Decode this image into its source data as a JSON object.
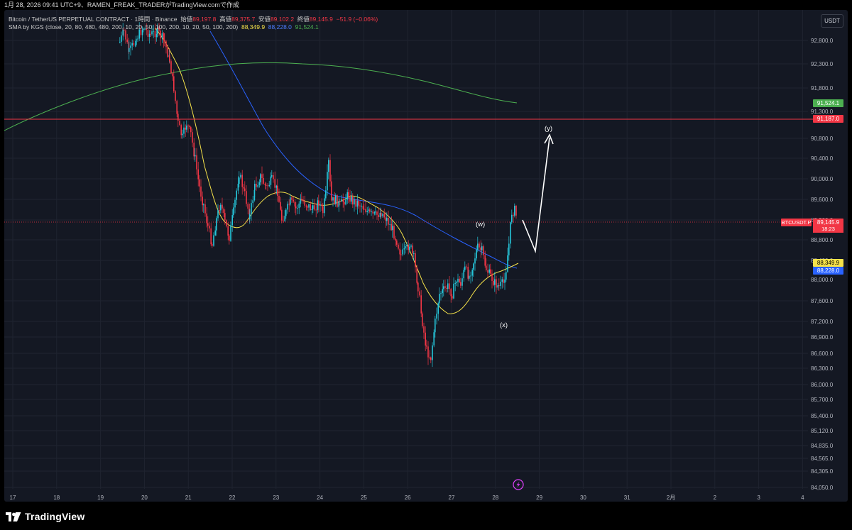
{
  "header": {
    "text": "1月 28, 2026 09:41 UTC+9、RAMEN_FREAK_TRADERがTradingView.comで作成"
  },
  "legend": {
    "symbol": "Bitcoin / TetherUS PERPETUAL CONTRACT",
    "interval": "1時間",
    "exchange": "Binance",
    "open_label": "始値",
    "open_value": "89,197.8",
    "high_label": "高値",
    "high_value": "89,375.7",
    "low_label": "安値",
    "low_value": "89,102.2",
    "close_label": "終値",
    "close_value": "89,145.9",
    "change": "−51.9 (−0.06%)",
    "indicator": "SMA by KGS (close, 20, 80, 480, 480, 200, 10, 20, 50, 100, 200, 10, 20, 50, 100, 200)",
    "sma_yellow": "88,349.9",
    "sma_blue": "88,228.0",
    "sma_green": "91,524.1"
  },
  "currency": "USDT",
  "price_axis": {
    "ticks": [
      "92,800.0",
      "92,300.0",
      "91,800.0",
      "91,300.0",
      "90,800.0",
      "90,400.0",
      "90,000.0",
      "89,600.0",
      "89,200.0",
      "88,800.0",
      "88,400.0",
      "88,000.0",
      "87,600.0",
      "87,200.0",
      "86,900.0",
      "86,600.0",
      "86,300.0",
      "86,000.0",
      "85,700.0",
      "85,400.0",
      "85,120.0",
      "84,835.0",
      "84,565.0",
      "84,305.0",
      "84,050.0"
    ]
  },
  "time_axis": {
    "labels": [
      "17",
      "18",
      "19",
      "20",
      "21",
      "22",
      "23",
      "24",
      "25",
      "26",
      "27",
      "28",
      "29",
      "30",
      "31",
      "2月",
      "2",
      "3",
      "4"
    ]
  },
  "markers": {
    "sma_green": {
      "label": "91,524.1",
      "color": "#4caf50"
    },
    "resistance": {
      "label": "91,187.0",
      "color": "#f23645"
    },
    "symbol": {
      "name": "BTCUSDT.P",
      "price": "89,145.9",
      "countdown": "18:23",
      "color": "#f23645"
    },
    "sma_yellow": {
      "label": "88,349.9",
      "color": "#f5e24a"
    },
    "sma_blue": {
      "label": "88,228.0",
      "color": "#2962ff"
    }
  },
  "waves": {
    "w": "(w)",
    "x": "(x)",
    "y": "(y)"
  },
  "colors": {
    "up": "#26c6da",
    "down": "#f23645",
    "background": "#141823",
    "grid": "#1f2430"
  },
  "footer": {
    "brand": "TradingView"
  }
}
